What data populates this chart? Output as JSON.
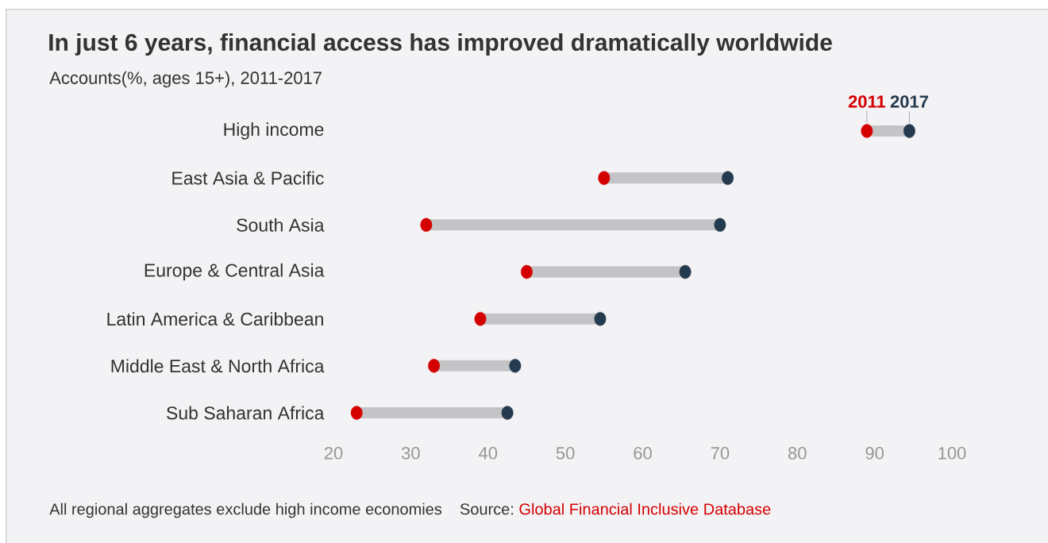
{
  "chart_data": {
    "type": "scatter",
    "orientation": "horizontal",
    "marker": "circle",
    "title": "In just 6 years, financial access has improved dramatically worldwide",
    "subtitle": "Accounts(%, ages 15+), 2011-2017",
    "categories": [
      "High income",
      "East Asia & Pacific",
      "South Asia",
      "Europe & Central Asia",
      "Latin America & Caribbean",
      "Middle East & North Africa",
      "Sub Saharan Africa"
    ],
    "series": [
      {
        "type": "bar",
        "color": "#c4c4c6",
        "base": [
          89,
          55,
          32,
          45,
          39,
          33,
          23
        ],
        "values": [
          5.5,
          16,
          38,
          20.5,
          15.5,
          10,
          20
        ]
      },
      {
        "name": "2011",
        "color": "#d40000",
        "values": [
          89,
          55,
          32,
          45,
          39,
          33,
          23
        ]
      },
      {
        "name": "2017",
        "color": "#243a4e",
        "values": [
          94.5,
          71,
          70,
          65.5,
          54.5,
          43.5,
          42.5
        ]
      }
    ],
    "xlim": [
      20,
      100
    ],
    "xticks": [
      20,
      30,
      40,
      50,
      60,
      70,
      80,
      90,
      100
    ],
    "annotations": [
      "All regional aggregates exclude high income economies",
      "Source:",
      "Global Financial Inclusive Database"
    ]
  }
}
